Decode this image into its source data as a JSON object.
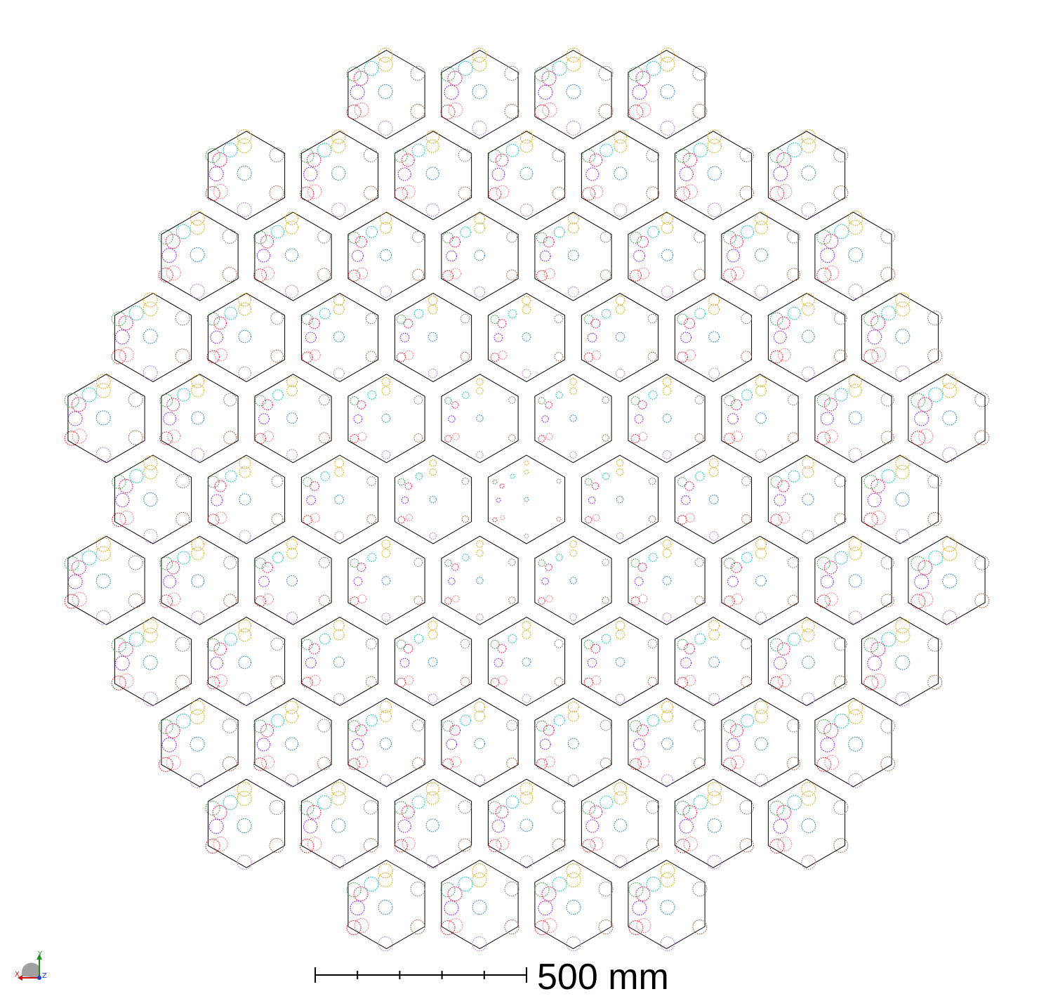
{
  "scale_bar": {
    "label": "500 mm",
    "ticks": 5
  },
  "axes_triad": {
    "x_label": "X",
    "y_label": "Y",
    "z_label": "Z"
  },
  "layout": {
    "row_counts": [
      4,
      7,
      8,
      9,
      10,
      9,
      10,
      9,
      8,
      7,
      4
    ]
  },
  "spot_colors": {
    "orange": "#e69500",
    "olive": "#c8a800",
    "cyan": "#00b4d2",
    "green": "#2a9a2a",
    "crimson": "#e0004a",
    "violet": "#8a00e0",
    "salmon": "#ff6f6f",
    "red": "#d01010",
    "blue": "#1a78c8",
    "gray": "#707070",
    "brown": "#a0522d",
    "lilac": "#b070e0"
  },
  "outline_color": "#000000"
}
